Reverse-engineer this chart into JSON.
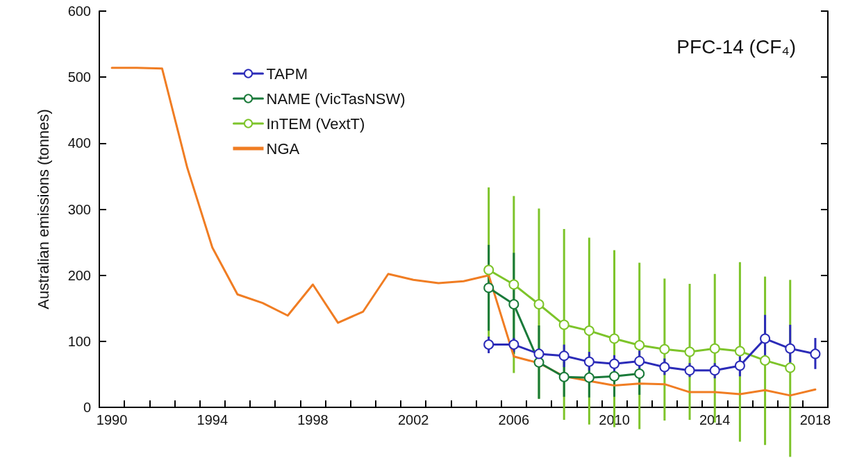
{
  "chart_data": {
    "type": "line",
    "title": "PFC-14 (CF₄)",
    "ylabel": "Australian emissions (tonnes)",
    "xlim": [
      1989.5,
      2018.5
    ],
    "xticks": [
      1990,
      1994,
      1998,
      2002,
      2006,
      2010,
      2014,
      2018,
      {
        "value": 1990.5,
        "label": null
      },
      {
        "value": 1991.5,
        "label": null
      },
      {
        "value": 1992.5,
        "label": null
      },
      {
        "value": 1993.5,
        "label": null
      },
      {
        "value": 1994.5,
        "label": null
      },
      {
        "value": 1995.5,
        "label": null
      },
      {
        "value": 1996.5,
        "label": null
      },
      {
        "value": 1997.5,
        "label": null
      },
      {
        "value": 1998.5,
        "label": null
      },
      {
        "value": 1999.5,
        "label": null
      },
      {
        "value": 2000.5,
        "label": null
      },
      {
        "value": 2001.5,
        "label": null
      },
      {
        "value": 2002.5,
        "label": null
      },
      {
        "value": 2003.5,
        "label": null
      },
      {
        "value": 2004.5,
        "label": null
      },
      {
        "value": 2005.5,
        "label": null
      },
      {
        "value": 2006.5,
        "label": null
      },
      {
        "value": 2007.5,
        "label": null
      },
      {
        "value": 2008.5,
        "label": null
      },
      {
        "value": 2009.5,
        "label": null
      },
      {
        "value": 2010.5,
        "label": null
      },
      {
        "value": 2011.5,
        "label": null
      },
      {
        "value": 2012.5,
        "label": null
      },
      {
        "value": 2013.5,
        "label": null
      },
      {
        "value": 2014.5,
        "label": null
      },
      {
        "value": 2015.5,
        "label": null
      },
      {
        "value": 2016.5,
        "label": null
      },
      {
        "value": 2017.5,
        "label": null
      }
    ],
    "ylim": [
      0,
      600
    ],
    "yticks": [
      0,
      100,
      200,
      300,
      400,
      500,
      600
    ],
    "grid": false,
    "legend": "top left",
    "line_style": "solid",
    "series": [
      {
        "name": "TAPM",
        "color": "#2b2bb8",
        "marker": "circle",
        "x": [
          2005,
          2006,
          2007,
          2008,
          2009,
          2010,
          2011,
          2012,
          2013,
          2014,
          2015,
          2016,
          2017,
          2018
        ],
        "values": [
          95,
          95,
          81,
          78,
          69,
          66,
          70,
          61,
          56,
          56,
          63,
          104,
          89,
          81
        ],
        "errors": [
          [
            82,
            107
          ],
          [
            84,
            105
          ],
          [
            70,
            89
          ],
          [
            61,
            95
          ],
          [
            56,
            84
          ],
          [
            53,
            79
          ],
          [
            54,
            86
          ],
          [
            49,
            74
          ],
          [
            46,
            67
          ],
          [
            44,
            67
          ],
          [
            47,
            79
          ],
          [
            65,
            140
          ],
          [
            56,
            125
          ],
          [
            58,
            105
          ]
        ]
      },
      {
        "name": "NAME (VicTasNSW)",
        "color": "#1a7a3a",
        "marker": "circle",
        "x": [
          2005,
          2006,
          2007,
          2008,
          2009,
          2010,
          2011
        ],
        "values": [
          181,
          156,
          68,
          46,
          45,
          47,
          51
        ],
        "errors": [
          [
            116,
            246
          ],
          [
            81,
            234
          ],
          [
            13,
            124
          ],
          [
            16,
            70
          ],
          [
            15,
            67
          ],
          [
            16,
            70
          ],
          [
            19,
            51
          ]
        ]
      },
      {
        "name": "InTEM (VextT)",
        "color": "#7dc42a",
        "marker": "circle",
        "x": [
          2005,
          2006,
          2007,
          2008,
          2009,
          2010,
          2011,
          2012,
          2013,
          2014,
          2015,
          2016,
          2017
        ],
        "values": [
          208,
          186,
          156,
          125,
          116,
          104,
          94,
          88,
          84,
          89,
          85,
          71,
          60
        ],
        "errors": [
          [
            105,
            333
          ],
          [
            52,
            320
          ],
          [
            13,
            301
          ],
          [
            -19,
            270
          ],
          [
            -26,
            257
          ],
          [
            -30,
            238
          ],
          [
            -33,
            219
          ],
          [
            -20,
            195
          ],
          [
            -19,
            187
          ],
          [
            -23,
            202
          ],
          [
            -52,
            220
          ],
          [
            -57,
            198
          ],
          [
            -75,
            193
          ]
        ]
      },
      {
        "name": "NGA",
        "color": "#f07d23",
        "marker": "none",
        "x": [
          1990,
          1991,
          1992,
          1993,
          1994,
          1995,
          1996,
          1997,
          1998,
          1999,
          2000,
          2001,
          2002,
          2003,
          2004,
          2005,
          2006,
          2007,
          2008,
          2009,
          2010,
          2011,
          2012,
          2013,
          2014,
          2015,
          2016,
          2017,
          2018
        ],
        "values": [
          514,
          514,
          513,
          363,
          242,
          171,
          158,
          139,
          186,
          128,
          145,
          202,
          193,
          188,
          191,
          200,
          77,
          67,
          47,
          40,
          33,
          36,
          35,
          23,
          23,
          20,
          26,
          18,
          27
        ]
      }
    ]
  }
}
